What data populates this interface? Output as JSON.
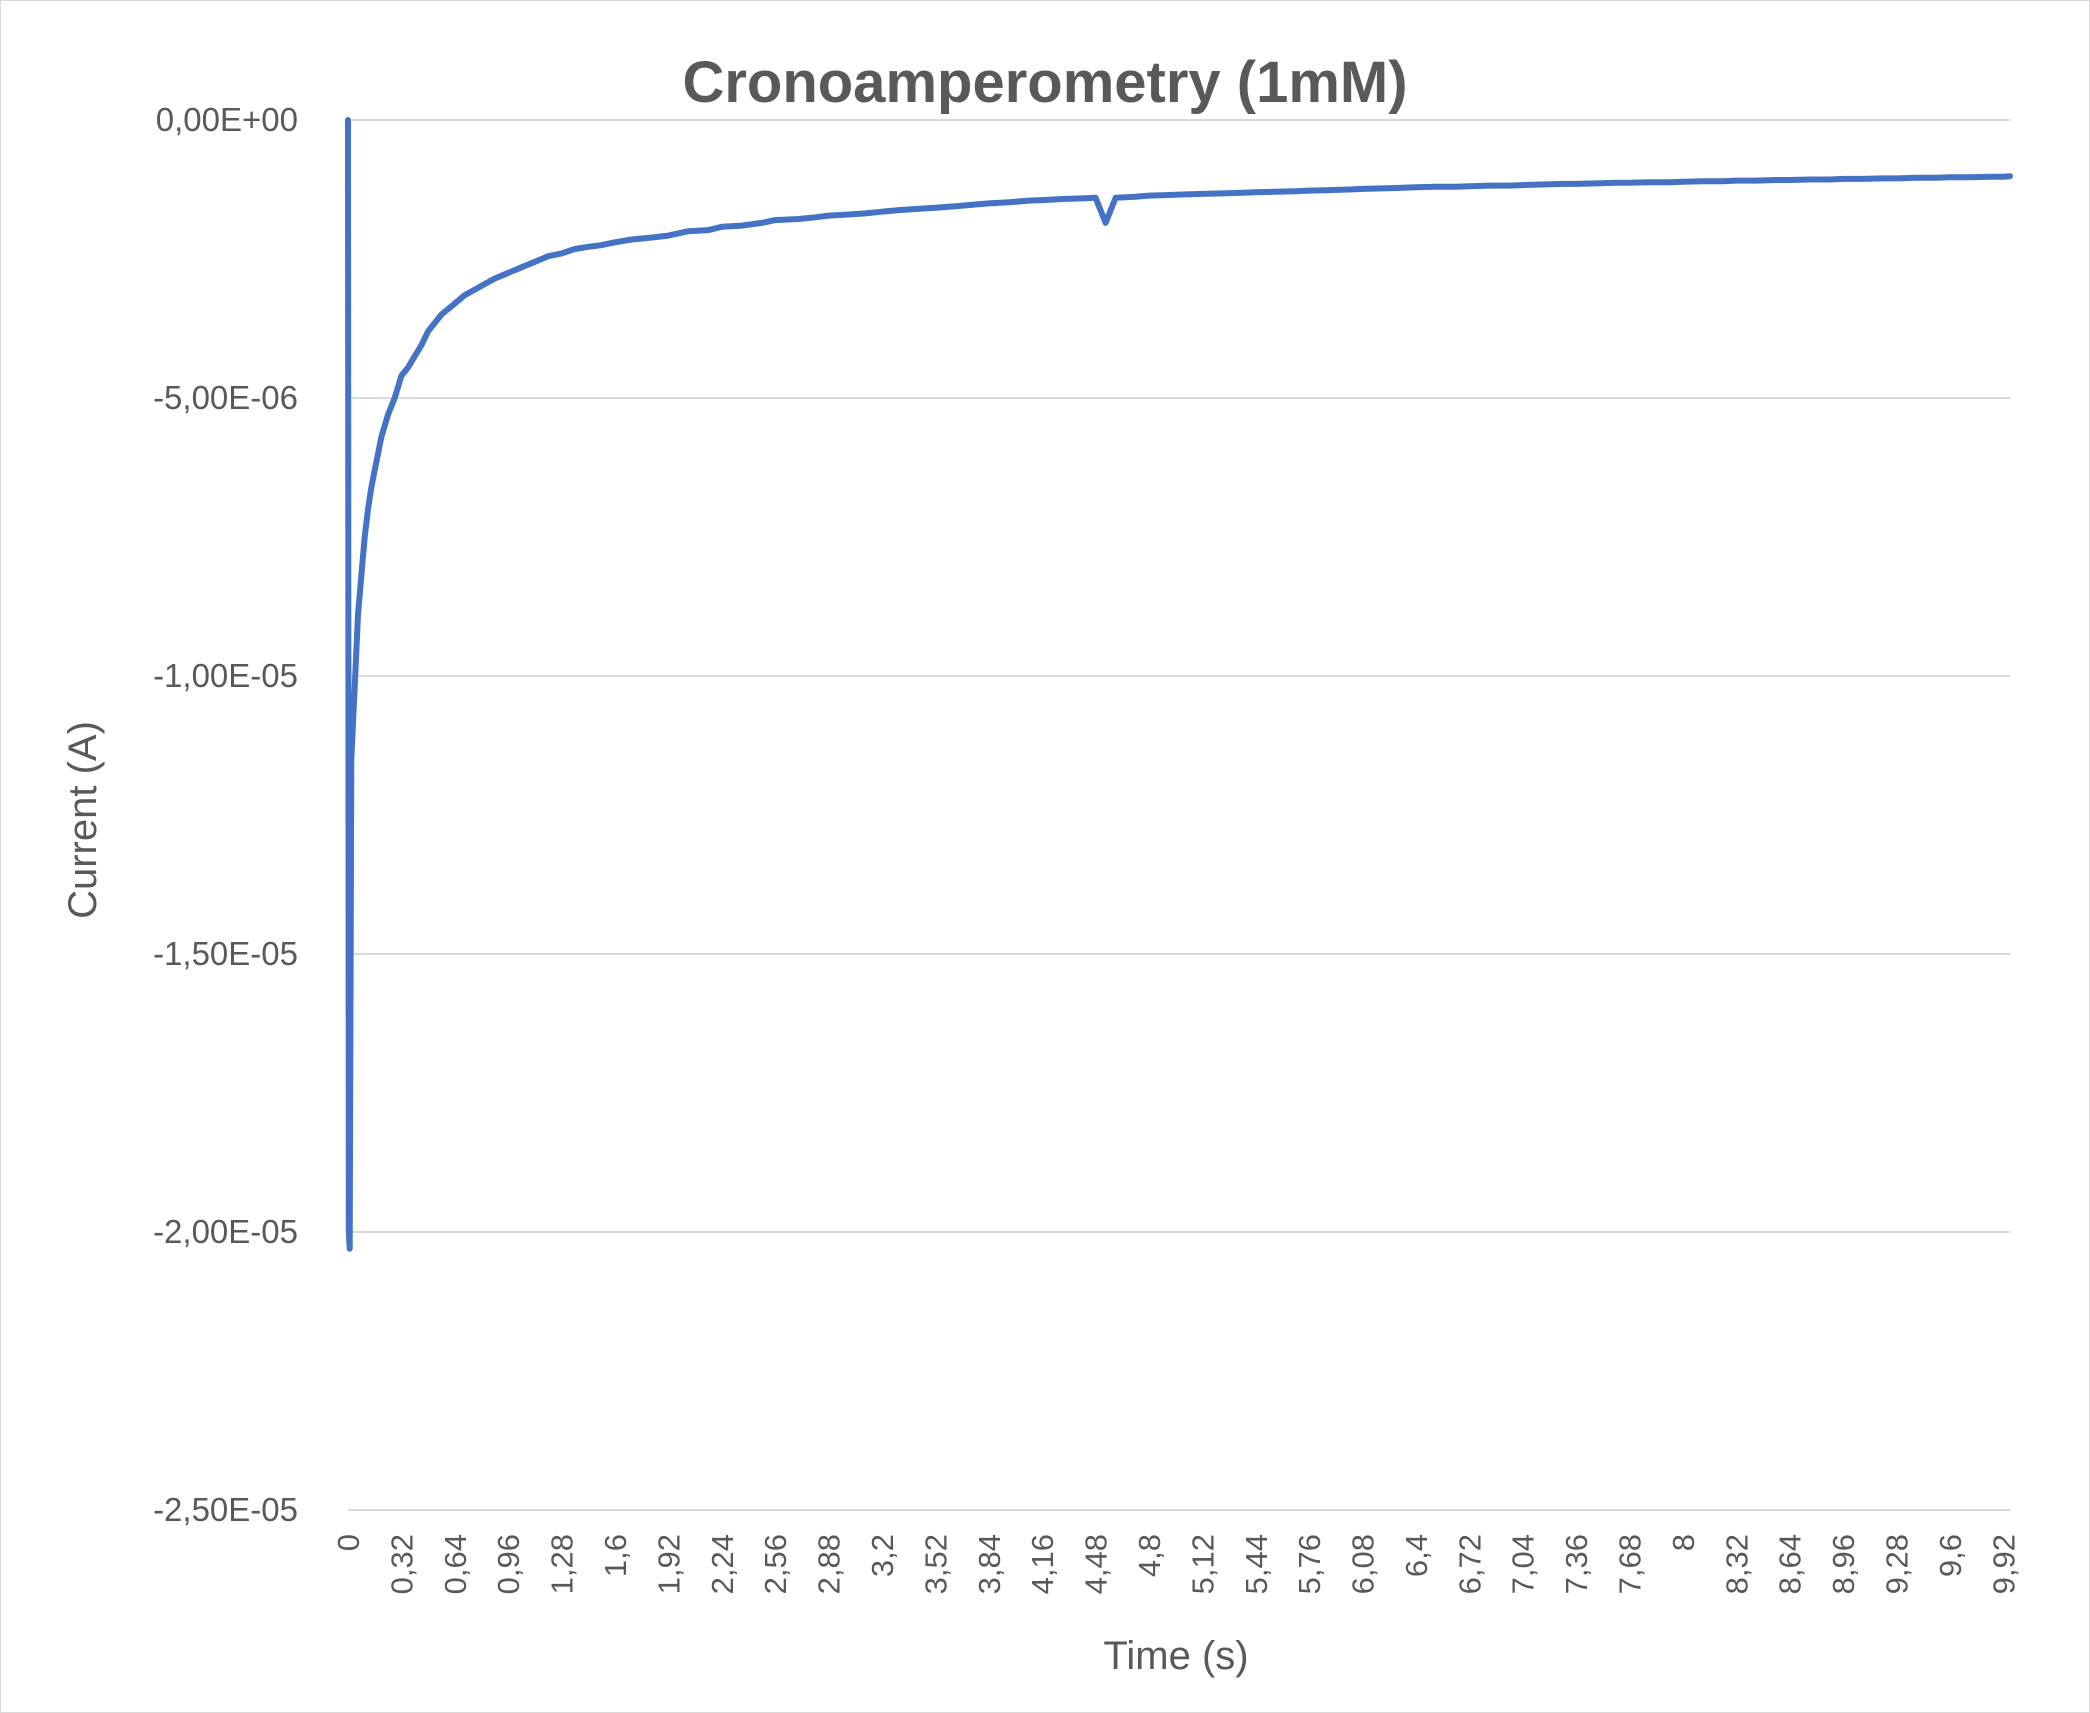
{
  "chart_data": {
    "type": "line",
    "title": "Cronoamperometry (1mM)",
    "xlabel": "Time (s)",
    "ylabel": "Current (A)",
    "xlim": [
      0,
      9.96
    ],
    "ylim": [
      -2.5e-05,
      0
    ],
    "y_ticks": [
      {
        "value": 0,
        "label": "0,00E+00"
      },
      {
        "value": -5e-06,
        "label": "-5,00E-06"
      },
      {
        "value": -1e-05,
        "label": "-1,00E-05"
      },
      {
        "value": -1.5e-05,
        "label": "-1,50E-05"
      },
      {
        "value": -2e-05,
        "label": "-2,00E-05"
      },
      {
        "value": -2.5e-05,
        "label": "-2,50E-05"
      }
    ],
    "x_ticks": [
      {
        "value": 0,
        "label": "0"
      },
      {
        "value": 0.32,
        "label": "0,32"
      },
      {
        "value": 0.64,
        "label": "0,64"
      },
      {
        "value": 0.96,
        "label": "0,96"
      },
      {
        "value": 1.28,
        "label": "1,28"
      },
      {
        "value": 1.6,
        "label": "1,6"
      },
      {
        "value": 1.92,
        "label": "1,92"
      },
      {
        "value": 2.24,
        "label": "2,24"
      },
      {
        "value": 2.56,
        "label": "2,56"
      },
      {
        "value": 2.88,
        "label": "2,88"
      },
      {
        "value": 3.2,
        "label": "3,2"
      },
      {
        "value": 3.52,
        "label": "3,52"
      },
      {
        "value": 3.84,
        "label": "3,84"
      },
      {
        "value": 4.16,
        "label": "4,16"
      },
      {
        "value": 4.48,
        "label": "4,48"
      },
      {
        "value": 4.8,
        "label": "4,8"
      },
      {
        "value": 5.12,
        "label": "5,12"
      },
      {
        "value": 5.44,
        "label": "5,44"
      },
      {
        "value": 5.76,
        "label": "5,76"
      },
      {
        "value": 6.08,
        "label": "6,08"
      },
      {
        "value": 6.4,
        "label": "6,4"
      },
      {
        "value": 6.72,
        "label": "6,72"
      },
      {
        "value": 7.04,
        "label": "7,04"
      },
      {
        "value": 7.36,
        "label": "7,36"
      },
      {
        "value": 7.68,
        "label": "7,68"
      },
      {
        "value": 8,
        "label": "8"
      },
      {
        "value": 8.32,
        "label": "8,32"
      },
      {
        "value": 8.64,
        "label": "8,64"
      },
      {
        "value": 8.96,
        "label": "8,96"
      },
      {
        "value": 9.28,
        "label": "9,28"
      },
      {
        "value": 9.6,
        "label": "9,6"
      },
      {
        "value": 9.92,
        "label": "9,92"
      }
    ],
    "grid": "horizontal",
    "legend": "none",
    "series": [
      {
        "color": "#4472c4",
        "x": [
          0,
          0.005,
          0.01,
          0.02,
          0.04,
          0.06,
          0.08,
          0.1,
          0.12,
          0.14,
          0.16,
          0.2,
          0.24,
          0.28,
          0.32,
          0.36,
          0.4,
          0.44,
          0.48,
          0.52,
          0.56,
          0.6,
          0.64,
          0.7,
          0.76,
          0.82,
          0.88,
          0.96,
          1.04,
          1.12,
          1.2,
          1.28,
          1.36,
          1.44,
          1.52,
          1.6,
          1.7,
          1.8,
          1.92,
          2.04,
          2.16,
          2.24,
          2.36,
          2.48,
          2.56,
          2.7,
          2.8,
          2.88,
          3.0,
          3.1,
          3.2,
          3.3,
          3.4,
          3.52,
          3.64,
          3.76,
          3.84,
          3.96,
          4.08,
          4.16,
          4.28,
          4.4,
          4.48,
          4.54,
          4.6,
          4.72,
          4.8,
          4.9,
          5.0,
          5.12,
          5.24,
          5.36,
          5.44,
          5.56,
          5.68,
          5.76,
          5.88,
          6.0,
          6.08,
          6.2,
          6.32,
          6.4,
          6.52,
          6.64,
          6.72,
          6.84,
          6.96,
          7.04,
          7.16,
          7.28,
          7.36,
          7.48,
          7.6,
          7.68,
          7.8,
          7.92,
          8.0,
          8.12,
          8.24,
          8.32,
          8.44,
          8.56,
          8.64,
          8.76,
          8.88,
          8.96,
          9.08,
          9.2,
          9.28,
          9.4,
          9.52,
          9.6,
          9.72,
          9.84,
          9.92,
          9.96
        ],
        "y": [
          0,
          -2e-05,
          -2.03e-05,
          -1.15e-05,
          -1.02e-05,
          -8.9e-06,
          -8.2e-06,
          -7.5e-06,
          -7e-06,
          -6.6e-06,
          -6.3e-06,
          -5.7e-06,
          -5.3e-06,
          -5e-06,
          -4.6e-06,
          -4.45e-06,
          -4.25e-06,
          -4.05e-06,
          -3.8e-06,
          -3.65e-06,
          -3.5e-06,
          -3.4e-06,
          -3.3e-06,
          -3.15e-06,
          -3.05e-06,
          -2.95e-06,
          -2.85e-06,
          -2.75e-06,
          -2.65e-06,
          -2.55e-06,
          -2.45e-06,
          -2.4e-06,
          -2.32e-06,
          -2.28e-06,
          -2.25e-06,
          -2.2e-06,
          -2.15e-06,
          -2.12e-06,
          -2.08e-06,
          -2e-06,
          -1.98e-06,
          -1.92e-06,
          -1.9e-06,
          -1.85e-06,
          -1.8e-06,
          -1.78e-06,
          -1.75e-06,
          -1.72e-06,
          -1.7e-06,
          -1.68e-06,
          -1.65e-06,
          -1.62e-06,
          -1.6e-06,
          -1.58e-06,
          -1.55e-06,
          -1.52e-06,
          -1.5e-06,
          -1.48e-06,
          -1.45e-06,
          -1.44e-06,
          -1.42e-06,
          -1.41e-06,
          -1.4e-06,
          -1.85e-06,
          -1.4e-06,
          -1.38e-06,
          -1.36e-06,
          -1.35e-06,
          -1.34e-06,
          -1.33e-06,
          -1.32e-06,
          -1.31e-06,
          -1.3e-06,
          -1.29e-06,
          -1.28e-06,
          -1.27e-06,
          -1.26e-06,
          -1.25e-06,
          -1.24e-06,
          -1.23e-06,
          -1.22e-06,
          -1.21e-06,
          -1.2e-06,
          -1.2e-06,
          -1.19e-06,
          -1.18e-06,
          -1.18e-06,
          -1.17e-06,
          -1.16e-06,
          -1.15e-06,
          -1.15e-06,
          -1.14e-06,
          -1.13e-06,
          -1.13e-06,
          -1.12e-06,
          -1.12e-06,
          -1.11e-06,
          -1.1e-06,
          -1.1e-06,
          -1.09e-06,
          -1.09e-06,
          -1.08e-06,
          -1.08e-06,
          -1.07e-06,
          -1.07e-06,
          -1.06e-06,
          -1.06e-06,
          -1.05e-06,
          -1.05e-06,
          -1.04e-06,
          -1.04e-06,
          -1.03e-06,
          -1.03e-06,
          -1.02e-06,
          -1.02e-06,
          -1.01e-06
        ]
      }
    ]
  }
}
